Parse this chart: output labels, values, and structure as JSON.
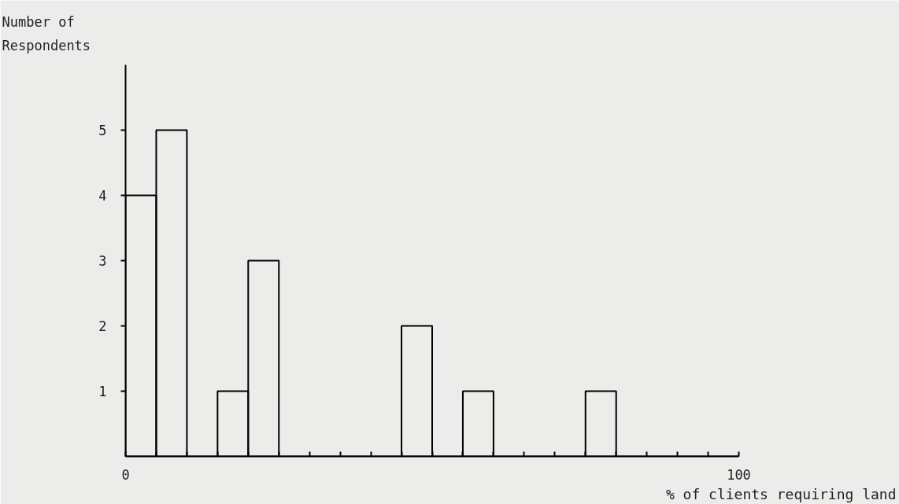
{
  "chart_data": {
    "type": "histogram",
    "xlabel": "% of clients requiring land",
    "ylabel": "Number of Respondents",
    "bins": [
      0,
      5,
      10,
      15,
      20,
      25,
      30,
      35,
      40,
      45,
      50,
      55,
      60,
      65,
      70,
      75,
      80,
      85,
      90,
      95,
      100
    ],
    "values": [
      4,
      5,
      0,
      1,
      3,
      0,
      0,
      0,
      0,
      2,
      0,
      1,
      0,
      0,
      0,
      1,
      0,
      0,
      0,
      0
    ],
    "color": "#000000",
    "xlim": [
      0,
      100
    ],
    "ylim": [
      0,
      6
    ],
    "xticks": [
      0,
      {
        "value": 5,
        "label": null
      },
      {
        "value": 10,
        "label": null
      },
      {
        "value": 15,
        "label": null
      },
      {
        "value": 20,
        "label": null
      },
      {
        "value": 25,
        "label": null
      },
      {
        "value": 30,
        "label": null
      },
      {
        "value": 35,
        "label": null
      },
      {
        "value": 40,
        "label": null
      },
      {
        "value": 45,
        "label": null
      },
      {
        "value": 50,
        "label": null
      },
      {
        "value": 55,
        "label": null
      },
      {
        "value": 60,
        "label": null
      },
      {
        "value": 65,
        "label": null
      },
      {
        "value": 70,
        "label": null
      },
      {
        "value": 75,
        "label": null
      },
      {
        "value": 80,
        "label": null
      },
      {
        "value": 85,
        "label": null
      },
      {
        "value": 90,
        "label": null
      },
      {
        "value": 95,
        "label": null
      },
      100
    ],
    "yticks": [
      1,
      2,
      3,
      4,
      5
    ],
    "grid": false
  }
}
